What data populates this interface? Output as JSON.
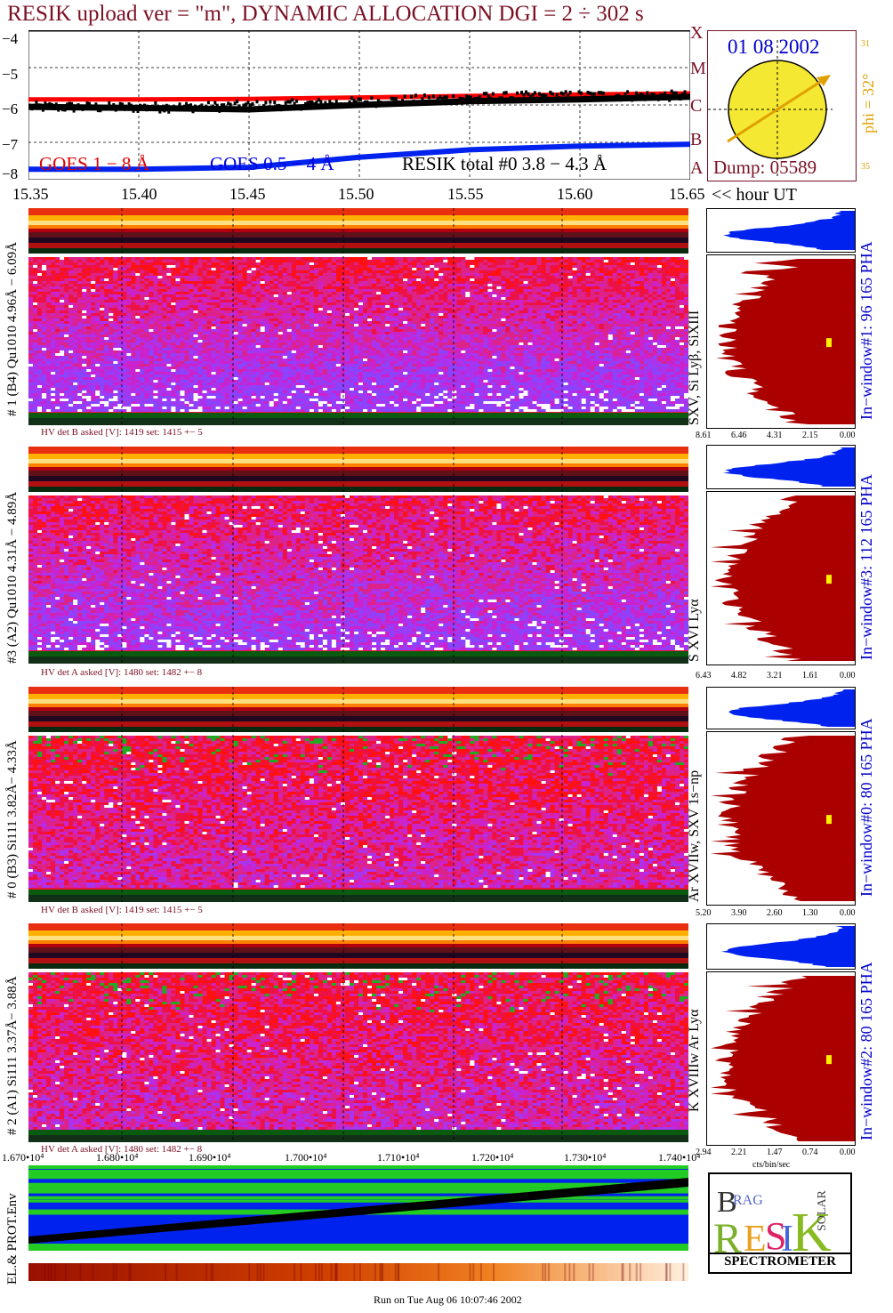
{
  "header": {
    "title": "RESIK upload ver = \"m\", DYNAMIC ALLOCATION  DGI =   2 ÷ 302 s"
  },
  "lightcurve": {
    "yticks": [
      "−4",
      "−5",
      "−6",
      "−7",
      "−8"
    ],
    "xticks": [
      "15.35",
      "15.40",
      "15.45",
      "15.50",
      "15.55",
      "15.60",
      "15.65"
    ],
    "xunit": "<< hour UT",
    "legend": {
      "goes_long": "GOES 1 − 8 Å",
      "goes_short": "GOES 0.5 − 4 Å",
      "resik": "RESIK total #0  3.8 − 4.3 Å"
    },
    "colors": {
      "goes_long": "#ff0000",
      "goes_short": "#0022ee",
      "resik": "#000000",
      "labels_long": "#e00000",
      "labels_short": "#0000dd"
    }
  },
  "chart_data": {
    "type": "line",
    "title": "RESIK upload ver = \"m\", DYNAMIC ALLOCATION  DGI =   2 ÷ 302 s",
    "xlabel": "<< hour UT",
    "ylabel": "",
    "xlim": [
      15.35,
      15.65
    ],
    "ylim": [
      -8,
      -4
    ],
    "series": [
      {
        "name": "GOES 1 − 8 Å",
        "x": [
          15.35,
          15.4,
          15.45,
          15.5,
          15.55,
          15.6,
          15.65
        ],
        "values": [
          -5.85,
          -5.85,
          -5.84,
          -5.8,
          -5.76,
          -5.72,
          -5.69
        ]
      },
      {
        "name": "GOES 0.5 − 4 Å",
        "x": [
          15.35,
          15.4,
          15.45,
          15.5,
          15.55,
          15.6,
          15.65
        ],
        "values": [
          -7.72,
          -7.72,
          -7.67,
          -7.4,
          -7.2,
          -7.1,
          -7.05
        ]
      },
      {
        "name": "RESIK total #0  3.8 − 4.3 Å",
        "x": [
          15.35,
          15.4,
          15.45,
          15.5,
          15.55,
          15.6,
          15.65
        ],
        "values": [
          -6.05,
          -6.08,
          -6.12,
          -6.0,
          -5.9,
          -5.85,
          -5.78
        ]
      }
    ]
  },
  "sun_panel": {
    "classes": [
      "X",
      "M",
      "C",
      "B",
      "A"
    ],
    "date": "01 08 2002",
    "phi": "phi = 32°",
    "phi_ticks": [
      "31",
      "35"
    ],
    "dump": "Dump: 05589",
    "colors": {
      "sun": "#f5e832",
      "arrow": "#e0a000",
      "date": "#0000cc",
      "dump": "#7a1024"
    }
  },
  "detectors": [
    {
      "label": "# 1 (B4) Qu1010 4.96Å − 6.09Å",
      "lines": "SXV, Si Lyβ, SiXIII",
      "hv": "HV det B asked [V]:  1419 set:  1415  +−    5",
      "window": "In−window#1:   96 165  PHA",
      "axis": [
        "8.61",
        "6.46",
        "4.31",
        "2.15",
        "0.00"
      ]
    },
    {
      "label": "#3 (A2) Qu1010  4.31Å − 4.89Å",
      "lines": "S XVI Lyα",
      "hv": "HV det A asked [V]:  1480 set:  1482  +−    8",
      "window": "In−window#3:   112 165  PHA",
      "axis": [
        "6.43",
        "4.82",
        "3.21",
        "1.61",
        "0.00"
      ]
    },
    {
      "label": "# 0 (B3) Si111  3.82Å− 4.33Å",
      "lines": "Ar XVIIw,  SXV 1s−np",
      "hv": "HV det B asked [V]:  1419 set:  1415  +−    5",
      "window": "In−window#0:   80 165  PHA",
      "axis": [
        "5.20",
        "3.90",
        "2.60",
        "1.30",
        "0.00"
      ]
    },
    {
      "label": "# 2 (A1) Si111  3.37Å− 3.88Å",
      "lines": "K XVIIIw  Ar Lyα",
      "hv": "HV det A asked [V]:  1480 set:  1482  +−    8",
      "window": "In−window#2:   80 165  PHA",
      "axis": [
        "2.94",
        "2.21",
        "1.47",
        "0.74",
        "0.00"
      ]
    }
  ],
  "pha_unit": "cts/bin/sec",
  "time_axis": [
    "1.670•10⁴",
    "1.680•10⁴",
    "1.690•10⁴",
    "1.700•10⁴",
    "1.710•10⁴",
    "1.720•10⁴",
    "1.730•10⁴",
    "1.740•10⁴"
  ],
  "env_label": "EL.& PROT.Env",
  "logo": {
    "bottom": "SPECTROMETER",
    "letters": [
      "B",
      "R",
      "A",
      "G",
      "R",
      "E",
      "S",
      "I",
      "K",
      "S",
      "O",
      "L",
      "A",
      "R"
    ]
  },
  "footer": {
    "run": "Run on Tue Aug 06 10:07:46 2002"
  }
}
